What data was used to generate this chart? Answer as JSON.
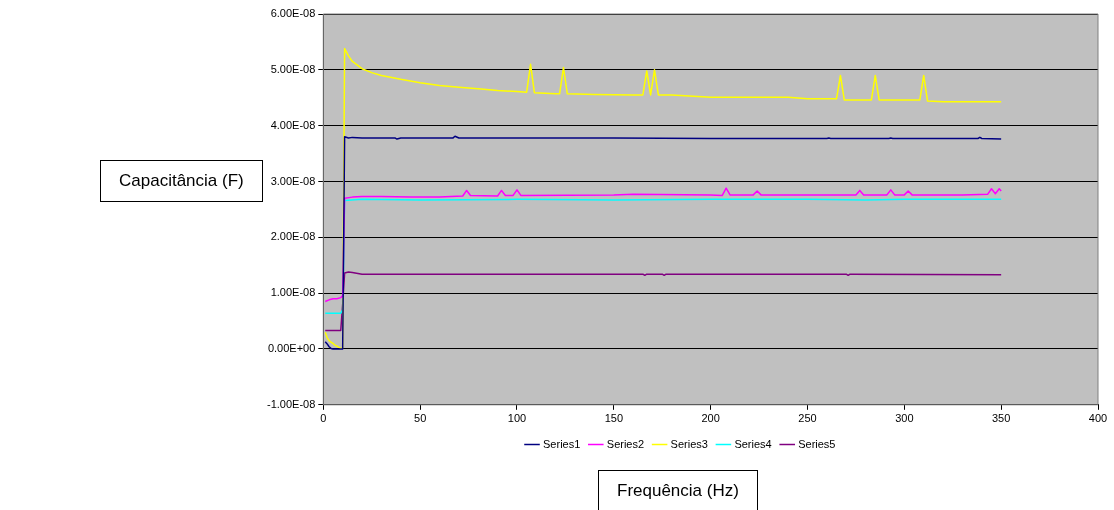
{
  "chart_data": {
    "type": "line",
    "xlabel": "Frequência (Hz)",
    "ylabel": "Capacitância (F)",
    "xlim": [
      0,
      400
    ],
    "xticks": [
      0,
      50,
      100,
      150,
      200,
      250,
      300,
      350,
      400
    ],
    "ylim": [
      -1e-08,
      6e-08
    ],
    "yticks": [
      {
        "value": -1e-08,
        "label": "-1.00E-08"
      },
      {
        "value": 0,
        "label": "0.00E+00"
      },
      {
        "value": 1e-08,
        "label": "1.00E-08"
      },
      {
        "value": 2e-08,
        "label": "2.00E-08"
      },
      {
        "value": 3e-08,
        "label": "3.00E-08"
      },
      {
        "value": 4e-08,
        "label": "4.00E-08"
      },
      {
        "value": 5e-08,
        "label": "5.00E-08"
      },
      {
        "value": 6e-08,
        "label": "6.00E-08"
      }
    ],
    "grid": "y",
    "legend": "bottom",
    "series": [
      {
        "name": "Series1",
        "color": "#000080",
        "x": [
          1,
          2,
          3,
          4,
          5,
          6,
          7,
          8,
          9,
          10,
          11,
          13,
          15,
          20,
          37,
          38,
          40,
          67,
          68,
          70,
          100,
          150,
          200,
          260,
          261,
          262,
          292,
          293,
          294,
          338,
          339,
          340,
          350
        ],
        "values": [
          1.3e-09,
          9e-10,
          4e-10,
          1e-10,
          0,
          0,
          0,
          0,
          0,
          0,
          3.8e-08,
          3.78e-08,
          3.79e-08,
          3.78e-08,
          3.78e-08,
          3.76e-08,
          3.78e-08,
          3.78e-08,
          3.81e-08,
          3.78e-08,
          3.78e-08,
          3.78e-08,
          3.77e-08,
          3.77e-08,
          3.78e-08,
          3.77e-08,
          3.77e-08,
          3.78e-08,
          3.77e-08,
          3.77e-08,
          3.79e-08,
          3.77e-08,
          3.76e-08
        ]
      },
      {
        "name": "Series2",
        "color": "#ff00ff",
        "x": [
          1,
          3,
          5,
          7,
          9,
          10,
          11,
          15,
          20,
          30,
          45,
          60,
          72,
          74,
          76,
          90,
          92,
          94,
          98,
          100,
          102,
          150,
          160,
          200,
          206,
          208,
          210,
          222,
          224,
          226,
          275,
          277,
          279,
          291,
          293,
          295,
          300,
          302,
          304,
          330,
          343,
          345,
          347,
          349,
          350
        ],
        "values": [
          8.5e-09,
          8.8e-09,
          9e-09,
          9e-09,
          9.2e-09,
          9.5e-09,
          2.7e-08,
          2.72e-08,
          2.73e-08,
          2.73e-08,
          2.72e-08,
          2.72e-08,
          2.74e-08,
          2.84e-08,
          2.75e-08,
          2.74e-08,
          2.84e-08,
          2.75e-08,
          2.75e-08,
          2.85e-08,
          2.75e-08,
          2.76e-08,
          2.77e-08,
          2.76e-08,
          2.75e-08,
          2.88e-08,
          2.76e-08,
          2.76e-08,
          2.83e-08,
          2.76e-08,
          2.76e-08,
          2.84e-08,
          2.76e-08,
          2.76e-08,
          2.85e-08,
          2.76e-08,
          2.76e-08,
          2.83e-08,
          2.76e-08,
          2.76e-08,
          2.77e-08,
          2.87e-08,
          2.78e-08,
          2.87e-08,
          2.83e-08
        ]
      },
      {
        "name": "Series3",
        "color": "#ffff00",
        "x": [
          1,
          2,
          3,
          4,
          5,
          6,
          7,
          8,
          9,
          10,
          11,
          13,
          15,
          20,
          25,
          30,
          40,
          50,
          60,
          70,
          80,
          90,
          100,
          105,
          107,
          109,
          120,
          122,
          124,
          126,
          140,
          160,
          165,
          167,
          169,
          171,
          173,
          180,
          200,
          240,
          250,
          265,
          267,
          269,
          283,
          285,
          287,
          308,
          310,
          312,
          320,
          350
        ],
        "values": [
          3e-09,
          2e-09,
          1.5e-09,
          1.2e-09,
          1e-09,
          7e-10,
          5e-10,
          3e-10,
          1e-10,
          2e-10,
          5.38e-08,
          5.25e-08,
          5.15e-08,
          5.02e-08,
          4.95e-08,
          4.9e-08,
          4.83e-08,
          4.77e-08,
          4.72e-08,
          4.69e-08,
          4.66e-08,
          4.63e-08,
          4.61e-08,
          4.6e-08,
          5.1e-08,
          4.59e-08,
          4.57e-08,
          4.57e-08,
          5.04e-08,
          4.57e-08,
          4.56e-08,
          4.55e-08,
          4.55e-08,
          4.98e-08,
          4.55e-08,
          5e-08,
          4.55e-08,
          4.55e-08,
          4.51e-08,
          4.51e-08,
          4.48e-08,
          4.48e-08,
          4.9e-08,
          4.46e-08,
          4.46e-08,
          4.9e-08,
          4.46e-08,
          4.46e-08,
          4.9e-08,
          4.44e-08,
          4.43e-08,
          4.43e-08
        ]
      },
      {
        "name": "Series4",
        "color": "#00ffff",
        "x": [
          1,
          5,
          9,
          10,
          11,
          20,
          50,
          100,
          150,
          200,
          250,
          280,
          300,
          350
        ],
        "values": [
          6.4e-09,
          6.4e-09,
          6.4e-09,
          7e-09,
          2.66e-08,
          2.68e-08,
          2.67e-08,
          2.68e-08,
          2.67e-08,
          2.68e-08,
          2.68e-08,
          2.67e-08,
          2.68e-08,
          2.68e-08
        ]
      },
      {
        "name": "Series5",
        "color": "#800080",
        "x": [
          1,
          5,
          9,
          10,
          11,
          13,
          15,
          20,
          100,
          165,
          166,
          167,
          175,
          176,
          177,
          200,
          270,
          271,
          272,
          350
        ],
        "values": [
          3.3e-09,
          3.3e-09,
          3.3e-09,
          8e-09,
          1.36e-08,
          1.38e-08,
          1.37e-08,
          1.34e-08,
          1.34e-08,
          1.34e-08,
          1.32e-08,
          1.34e-08,
          1.34e-08,
          1.32e-08,
          1.34e-08,
          1.34e-08,
          1.34e-08,
          1.32e-08,
          1.34e-08,
          1.33e-08
        ]
      }
    ]
  }
}
